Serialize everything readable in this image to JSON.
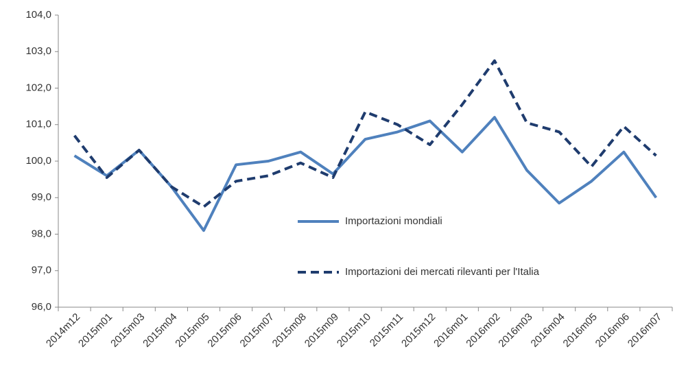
{
  "chart_data": {
    "type": "line",
    "categories": [
      "2014m12",
      "2015m01",
      "2015m03",
      "2015m04",
      "2015m05",
      "2015m06",
      "2015m07",
      "2015m08",
      "2015m09",
      "2015m10",
      "2015m11",
      "2015m12",
      "2016m01",
      "2016m02",
      "2016m03",
      "2016m04",
      "2016m05",
      "2016m06",
      "2016m07"
    ],
    "series": [
      {
        "name": "Importazioni mondiali",
        "color": "#4f81bd",
        "dash": "solid",
        "values": [
          100.15,
          99.6,
          100.3,
          99.3,
          98.1,
          99.9,
          100.0,
          100.25,
          99.65,
          100.6,
          100.8,
          101.1,
          100.25,
          101.2,
          99.75,
          98.85,
          99.45,
          100.25,
          99.0
        ]
      },
      {
        "name": "Importazioni dei mercati rilevanti per l'Italia",
        "color": "#1f3c6e",
        "dash": "dashed",
        "values": [
          100.7,
          99.55,
          100.3,
          99.3,
          98.75,
          99.45,
          99.6,
          99.95,
          99.55,
          101.35,
          101.0,
          100.45,
          101.55,
          102.75,
          101.05,
          100.8,
          99.85,
          100.95,
          100.15
        ]
      }
    ],
    "ylim": [
      96,
      104
    ],
    "yticks": [
      {
        "value": 96,
        "label": "96,0"
      },
      {
        "value": 97,
        "label": "97,0"
      },
      {
        "value": 98,
        "label": "98,0"
      },
      {
        "value": 99,
        "label": "99,0"
      },
      {
        "value": 100,
        "label": "100,0"
      },
      {
        "value": 101,
        "label": "101,0"
      },
      {
        "value": 102,
        "label": "102,0"
      },
      {
        "value": 103,
        "label": "103,0"
      },
      {
        "value": 104,
        "label": "104,0"
      }
    ],
    "grid": false
  }
}
